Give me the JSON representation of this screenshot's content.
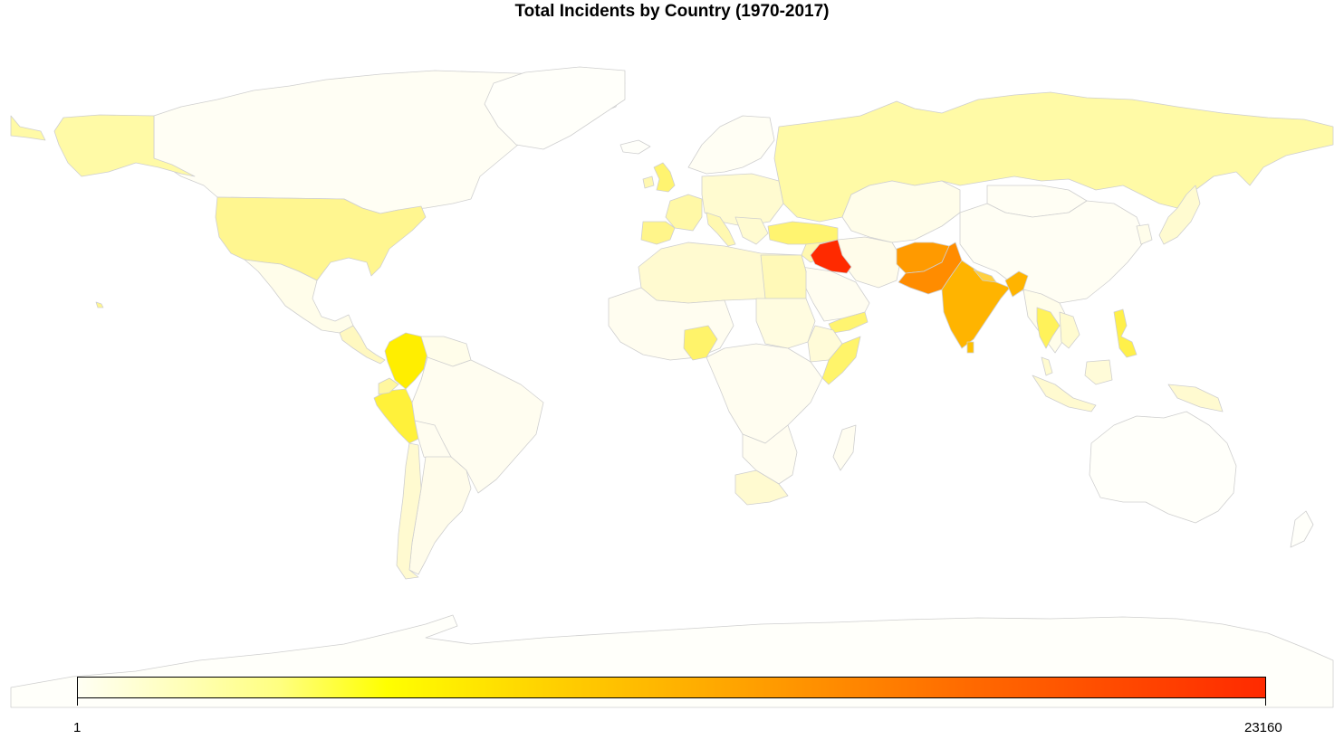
{
  "title": "Total Incidents by Country (1970-2017)",
  "legend": {
    "min_label": "1",
    "max_label": "23160",
    "min_value": 1,
    "max_value": 23160,
    "colors": [
      "#fffff4",
      "#ffff80",
      "#ffff00",
      "#ffd000",
      "#ffa500",
      "#ff6a00",
      "#ff2a00"
    ]
  },
  "background_color": "#ffffff",
  "border_color": "#cfcfcf",
  "highlighted_countries": [
    {
      "name": "Iraq",
      "color": "#ff2a00"
    },
    {
      "name": "Pakistan",
      "color": "#ff8c00"
    },
    {
      "name": "Afghanistan",
      "color": "#ff9a00"
    },
    {
      "name": "India",
      "color": "#ffb400"
    },
    {
      "name": "Colombia",
      "color": "#ffee00"
    },
    {
      "name": "Peru",
      "color": "#fff13a"
    },
    {
      "name": "Philippines",
      "color": "#fff04a"
    },
    {
      "name": "Thailand",
      "color": "#fff25a"
    },
    {
      "name": "United Kingdom",
      "color": "#fff470"
    },
    {
      "name": "Turkey",
      "color": "#fff470"
    },
    {
      "name": "Somalia",
      "color": "#fff46a"
    },
    {
      "name": "Nigeria",
      "color": "#fff36a"
    },
    {
      "name": "Yemen",
      "color": "#fff470"
    },
    {
      "name": "United States",
      "color": "#fff690"
    },
    {
      "name": "Russia",
      "color": "#fffaa6"
    },
    {
      "name": "Spain",
      "color": "#fff58a"
    },
    {
      "name": "France",
      "color": "#fff8a6"
    },
    {
      "name": "Sri Lanka",
      "color": "#ffc000"
    },
    {
      "name": "Nepal",
      "color": "#ffd040"
    },
    {
      "name": "Bangladesh",
      "color": "#ffd040"
    },
    {
      "name": "Chile",
      "color": "#fffad0"
    },
    {
      "name": "Argentina",
      "color": "#fffcea"
    },
    {
      "name": "South Africa",
      "color": "#fffad0"
    },
    {
      "name": "Egypt",
      "color": "#fff9b8"
    },
    {
      "name": "Algeria",
      "color": "#fffbd0"
    },
    {
      "name": "Libya",
      "color": "#fffbd0"
    },
    {
      "name": "Sudan",
      "color": "#fffce0"
    },
    {
      "name": "Alaska",
      "color": "#fffaa6"
    },
    {
      "name": "Hawaii",
      "color": "#fff690"
    },
    {
      "name": "Canada",
      "color": "#fffef4"
    },
    {
      "name": "Mexico",
      "color": "#fffdea"
    }
  ]
}
